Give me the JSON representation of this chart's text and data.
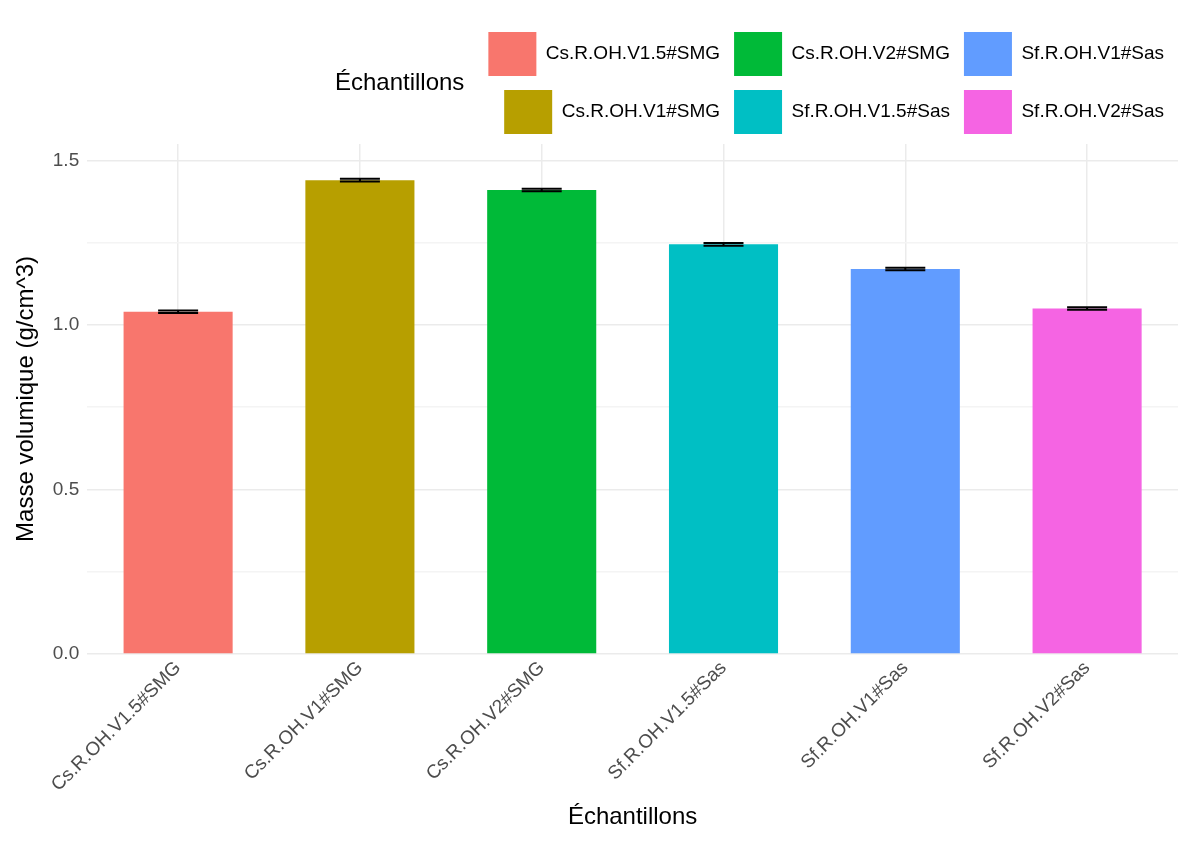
{
  "chart_data": {
    "type": "bar",
    "xlabel": "Échantillons",
    "ylabel": "Masse volumique (g/cm^3)",
    "legend_title": "Échantillons",
    "legend": "top",
    "categories": [
      "Cs.R.OH.V1.5#SMG",
      "Cs.R.OH.V1#SMG",
      "Cs.R.OH.V2#SMG",
      "Sf.R.OH.V1.5#Sas",
      "Sf.R.OH.V1#Sas",
      "Sf.R.OH.V2#Sas"
    ],
    "series": [
      {
        "name": "Cs.R.OH.V1.5#SMG",
        "color": "#f8766d",
        "values": [
          1.04,
          null,
          null,
          null,
          null,
          null
        ],
        "errors": [
          0.004,
          null,
          null,
          null,
          null,
          null
        ]
      },
      {
        "name": "Cs.R.OH.V1#SMG",
        "color": "#b79f00",
        "values": [
          null,
          1.44,
          null,
          null,
          null,
          null
        ],
        "errors": [
          null,
          0.004,
          null,
          null,
          null,
          null
        ]
      },
      {
        "name": "Cs.R.OH.V2#SMG",
        "color": "#00ba38",
        "values": [
          null,
          null,
          1.41,
          null,
          null,
          null
        ],
        "errors": [
          null,
          null,
          0.004,
          null,
          null,
          null
        ]
      },
      {
        "name": "Sf.R.OH.V1.5#Sas",
        "color": "#00bfc4",
        "values": [
          null,
          null,
          null,
          1.245,
          null,
          null
        ],
        "errors": [
          null,
          null,
          null,
          0.004,
          null,
          null
        ]
      },
      {
        "name": "Sf.R.OH.V1#Sas",
        "color": "#619cff",
        "values": [
          null,
          null,
          null,
          null,
          1.17,
          null
        ],
        "errors": [
          null,
          null,
          null,
          null,
          0.004,
          null
        ]
      },
      {
        "name": "Sf.R.OH.V2#Sas",
        "color": "#f564e3",
        "values": [
          null,
          null,
          null,
          null,
          null,
          1.05
        ],
        "errors": [
          null,
          null,
          null,
          null,
          null,
          0.004
        ]
      }
    ],
    "ylim": [
      0,
      1.55
    ],
    "yticks": [
      {
        "value": 0,
        "label": "0.0"
      },
      {
        "value": 0.25,
        "label": null
      },
      {
        "value": 0.5,
        "label": "0.5"
      },
      {
        "value": 0.75,
        "label": null
      },
      {
        "value": 1,
        "label": "1.0"
      },
      {
        "value": 1.25,
        "label": null
      },
      {
        "value": 1.5,
        "label": "1.5"
      }
    ],
    "grid": true
  }
}
